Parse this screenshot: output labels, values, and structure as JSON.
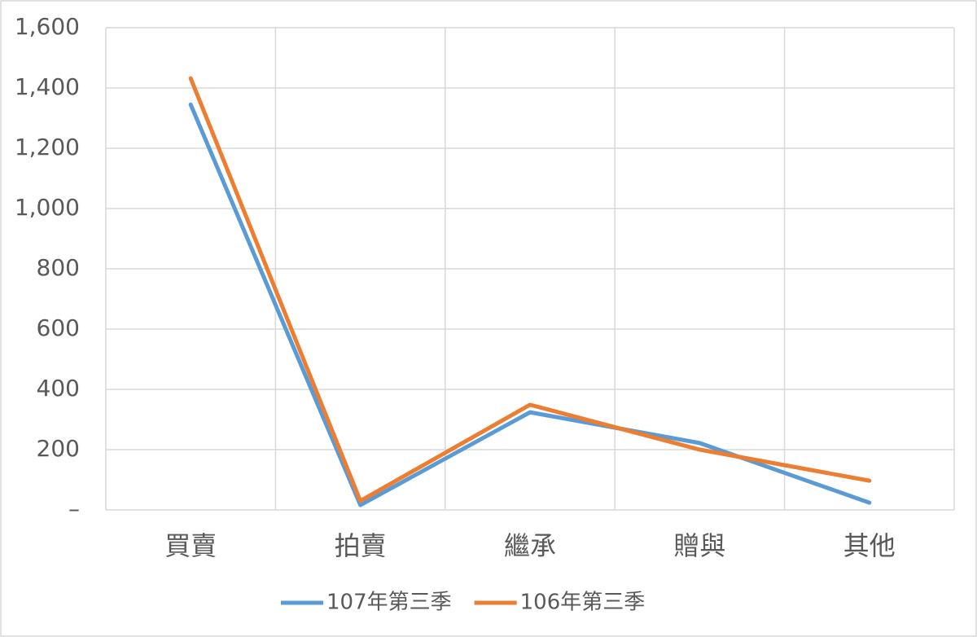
{
  "chart_data": {
    "type": "line",
    "categories": [
      "買賣",
      "拍賣",
      "繼承",
      "贈與",
      "其他"
    ],
    "series": [
      {
        "name": "107年第三季",
        "color": "#5b9bd5",
        "values": [
          1345,
          16,
          324,
          222,
          24
        ]
      },
      {
        "name": "106年第三季",
        "color": "#ed7d31",
        "values": [
          1432,
          30,
          349,
          200,
          97
        ]
      }
    ],
    "ylim": [
      0,
      1600
    ],
    "yticks": [
      {
        "value": 0,
        "label": "–"
      },
      200,
      400,
      600,
      800,
      {
        "value": 1000,
        "label": "1,000"
      },
      {
        "value": 1200,
        "label": "1,200"
      },
      {
        "value": 1400,
        "label": "1,400"
      },
      {
        "value": 1600,
        "label": "1,600"
      }
    ],
    "grid": true,
    "legend": "bottom"
  }
}
